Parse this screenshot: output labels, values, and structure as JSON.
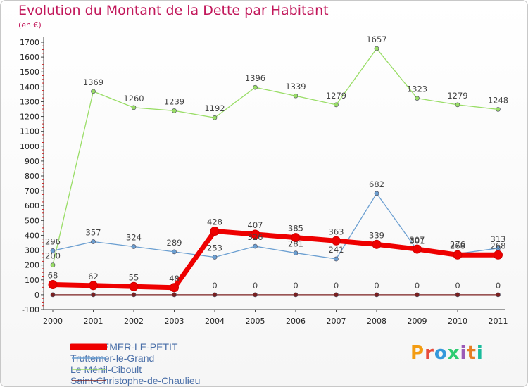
{
  "title": "Evolution du Montant de la Dette par Habitant",
  "subtitle": "(en €)",
  "logo_text": "Proxiti",
  "logo_colors": [
    "#f39c12",
    "#e74c3c",
    "#3498db",
    "#2ecc71",
    "#9b59b6",
    "#e67e22",
    "#1abc9c"
  ],
  "chart_data": {
    "type": "line",
    "title": "Evolution du Montant de la Dette par Habitant",
    "ylabel": "(en €)",
    "xlabel": "",
    "x": [
      "2000",
      "2001",
      "2002",
      "2003",
      "2004",
      "2005",
      "2006",
      "2007",
      "2008",
      "2009",
      "2010",
      "2011"
    ],
    "ylim": [
      -100,
      1700
    ],
    "yticks": [
      -100,
      0,
      100,
      200,
      300,
      400,
      500,
      600,
      700,
      800,
      900,
      1000,
      1100,
      1200,
      1300,
      1400,
      1500,
      1600,
      1700
    ],
    "grid": false,
    "legend_position": "bottom-left",
    "series": [
      {
        "name": "Saint-Christophe-de-Chaulieu",
        "color": "#7a1f1f",
        "values": [
          0,
          0,
          0,
          0,
          0,
          0,
          0,
          0,
          0,
          0,
          0,
          0
        ],
        "labels": [
          "",
          "",
          "",
          "",
          "0",
          "0",
          "0",
          "0",
          "0",
          "0",
          "0",
          "0"
        ]
      },
      {
        "name": "Le Ménil-Ciboult",
        "color": "#99dd66",
        "values": [
          200,
          1369,
          1260,
          1239,
          1192,
          1396,
          1339,
          1279,
          1657,
          1323,
          1279,
          1248
        ],
        "labels": [
          "200",
          "1369",
          "1260",
          "1239",
          "1192",
          "1396",
          "1339",
          "1279",
          "1657",
          "1323",
          "1279",
          "1248"
        ]
      },
      {
        "name": "Truttemer-le-Grand",
        "color": "#6b9fd1",
        "values": [
          296,
          357,
          324,
          289,
          253,
          326,
          281,
          241,
          682,
          301,
          276,
          313
        ],
        "labels": [
          "296",
          "357",
          "324",
          "289",
          "253",
          "326",
          "281",
          "241",
          "682",
          "301",
          "276",
          "313"
        ]
      },
      {
        "name": "TRUTTEMER-LE-PETIT",
        "color": "#ee0000",
        "values": [
          68,
          62,
          55,
          48,
          428,
          407,
          385,
          363,
          339,
          307,
          268,
          268
        ],
        "labels": [
          "68",
          "62",
          "55",
          "48",
          "428",
          "407",
          "385",
          "363",
          "339",
          "307",
          "268",
          "268"
        ]
      }
    ]
  }
}
